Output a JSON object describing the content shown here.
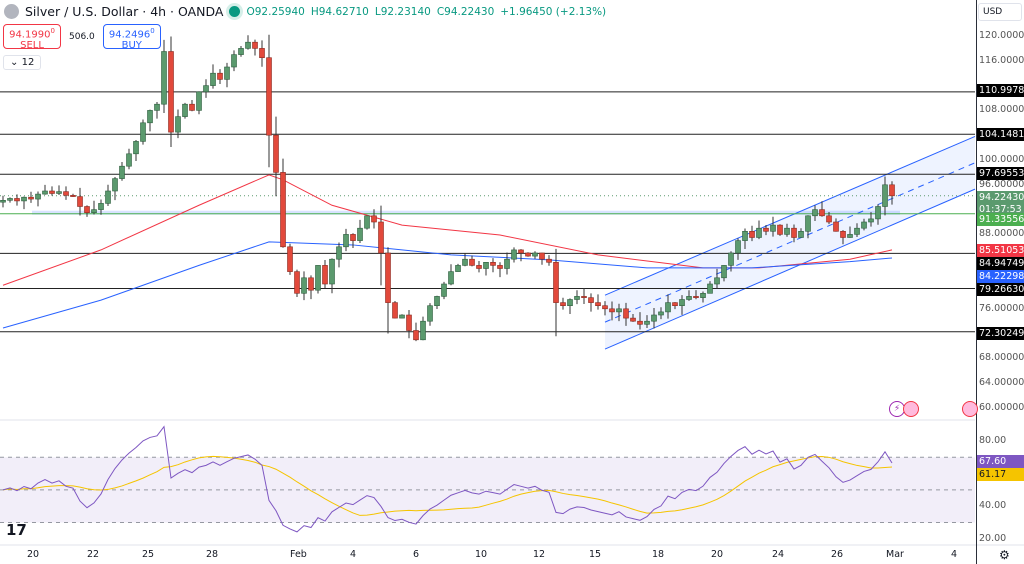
{
  "header": {
    "title": "Silver / U.S. Dollar · 4h · OANDA",
    "open": "O92.25940",
    "high": "H94.62710",
    "low": "L92.23140",
    "close": "C94.22430",
    "change": "+1.96450 (+2.13%)"
  },
  "trade": {
    "sell_price": "94.1990",
    "sell_sup": "0",
    "sell_label": "SELL",
    "spread": "506.0",
    "buy_price": "94.2496",
    "buy_sup": "0",
    "buy_label": "BUY"
  },
  "collapse": {
    "count": "12"
  },
  "axis": {
    "currency": "USD",
    "ticks": [
      "120.00000",
      "116.00000",
      "108.00000",
      "100.00000",
      "96.00000",
      "88.00000",
      "76.00000",
      "68.00000",
      "64.00000",
      "60.00000"
    ],
    "rsi_ticks": [
      "80.00",
      "40.00",
      "20.00"
    ]
  },
  "tags": {
    "l1": "110.99783",
    "l2": "104.14810",
    "l3": "97.69553",
    "price": "94.22430",
    "countdown": "01:37:53",
    "green": "91.33556",
    "red_ma": "85.51053",
    "l4": "84.94749",
    "blue_ma": "84.22298",
    "l5": "79.26630",
    "l6": "72.30249",
    "rsi": "67.60",
    "rsi_ma": "61.17"
  },
  "colors": {
    "up": "#5b9a6e",
    "down": "#e2493b",
    "red_ma": "#f23645",
    "blue_ma": "#2962ff",
    "rsi": "#7e57c2",
    "rsi_ma": "#f5c400",
    "green_level": "#4caf50",
    "channel": "#2962ff"
  },
  "dates": [
    "20",
    "22",
    "25",
    "28",
    "Feb",
    "4",
    "6",
    "10",
    "12",
    "15",
    "18",
    "20",
    "24",
    "26",
    "Mar",
    "4"
  ],
  "icons": {
    "gear": "gear-icon",
    "logo": "tradingview-logo",
    "events": [
      "lightning-event-icon",
      "us-flag-event-icon",
      "us-flag-event-icon"
    ]
  },
  "chart_data": {
    "type": "candlestick",
    "symbol": "XAGUSD",
    "timeframe": "4h",
    "ylim": [
      60,
      120
    ],
    "close": [
      93.5,
      93.8,
      93.4,
      94,
      93.7,
      94.5,
      95,
      94.6,
      94.9,
      94.3,
      94.1,
      92.5,
      91.5,
      92,
      93,
      95,
      97,
      99,
      101,
      103,
      106,
      108,
      109,
      117.5,
      104.5,
      107,
      109,
      108,
      111,
      112,
      114,
      113,
      115,
      117,
      118,
      119,
      118,
      116.5,
      104,
      98,
      86,
      82,
      78.5,
      81,
      79,
      83,
      80,
      84,
      86,
      88,
      87,
      89,
      91,
      90,
      85,
      77,
      74.5,
      75,
      72.5,
      71,
      74,
      76.5,
      78,
      80,
      82,
      83,
      84,
      83,
      82.5,
      83.5,
      83,
      82.5,
      84,
      85.5,
      85,
      84.5,
      85,
      84,
      83.5,
      77,
      76.5,
      77.5,
      78,
      77.8,
      77,
      76.5,
      76,
      75.5,
      76,
      74.5,
      74,
      73.5,
      74,
      75,
      75.5,
      77,
      76.5,
      77.5,
      78,
      77.8,
      78.5,
      80,
      81,
      83,
      85,
      87,
      88.5,
      87.5,
      89,
      88.5,
      89.5,
      88,
      89,
      87.5,
      88.5,
      91,
      92,
      91,
      90,
      88.5,
      87.5,
      88,
      89,
      90,
      90.5,
      92.5,
      96,
      94.2243
    ],
    "levels": [
      110.99783,
      104.1481,
      97.69553,
      84.94749,
      79.2663,
      72.30249
    ],
    "support_level": 91.33556,
    "red_ma": [
      [
        0,
        79.8
      ],
      [
        14,
        85.5
      ],
      [
        28,
        92.7
      ],
      [
        38,
        97.6
      ],
      [
        40,
        96.8
      ],
      [
        47,
        92.7
      ],
      [
        57,
        89.5
      ],
      [
        71,
        87.9
      ],
      [
        85,
        84.7
      ],
      [
        100,
        82.6
      ],
      [
        108,
        82.6
      ],
      [
        121,
        84
      ],
      [
        127,
        85.5
      ]
    ],
    "blue_ma": [
      [
        0,
        72.9
      ],
      [
        14,
        77.4
      ],
      [
        28,
        83
      ],
      [
        38,
        86.8
      ],
      [
        50,
        86.3
      ],
      [
        64,
        84.7
      ],
      [
        78,
        83.9
      ],
      [
        92,
        82.6
      ],
      [
        107,
        82.6
      ],
      [
        121,
        83.6
      ],
      [
        127,
        84.2
      ]
    ],
    "channel": {
      "start_index": 86,
      "lower_start": 69.5,
      "upper_start": 78.2,
      "lower_end_axis": 95.3,
      "upper_end_axis": 103.8
    },
    "rsi": {
      "levels": [
        70,
        50,
        30
      ],
      "ylim": [
        15,
        90
      ],
      "last": 67.6,
      "ma_last": 61.17
    }
  }
}
